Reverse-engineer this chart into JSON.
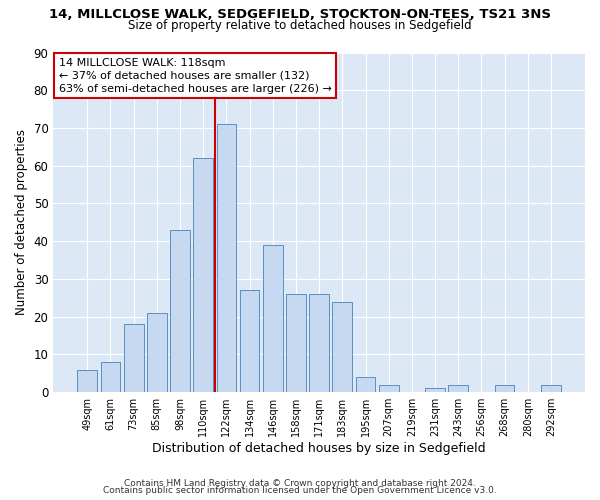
{
  "title": "14, MILLCLOSE WALK, SEDGEFIELD, STOCKTON-ON-TEES, TS21 3NS",
  "subtitle": "Size of property relative to detached houses in Sedgefield",
  "xlabel": "Distribution of detached houses by size in Sedgefield",
  "ylabel": "Number of detached properties",
  "bar_labels": [
    "49sqm",
    "61sqm",
    "73sqm",
    "85sqm",
    "98sqm",
    "110sqm",
    "122sqm",
    "134sqm",
    "146sqm",
    "158sqm",
    "171sqm",
    "183sqm",
    "195sqm",
    "207sqm",
    "219sqm",
    "231sqm",
    "243sqm",
    "256sqm",
    "268sqm",
    "280sqm",
    "292sqm"
  ],
  "bar_heights": [
    6,
    8,
    18,
    21,
    43,
    62,
    71,
    27,
    39,
    26,
    26,
    24,
    4,
    2,
    0,
    1,
    2,
    0,
    2,
    0,
    2
  ],
  "bar_color": "#c6d9f0",
  "bar_edge_color": "#5a8fc3",
  "annotation_title": "14 MILLCLOSE WALK: 118sqm",
  "annotation_line1": "← 37% of detached houses are smaller (132)",
  "annotation_line2": "63% of semi-detached houses are larger (226) →",
  "vline_color": "#cc0000",
  "vline_x": 5.5,
  "ylim": [
    0,
    90
  ],
  "yticks": [
    0,
    10,
    20,
    30,
    40,
    50,
    60,
    70,
    80,
    90
  ],
  "footer1": "Contains HM Land Registry data © Crown copyright and database right 2024.",
  "footer2": "Contains public sector information licensed under the Open Government Licence v3.0.",
  "bg_color": "#ffffff",
  "plot_bg_color": "#dce8f5"
}
